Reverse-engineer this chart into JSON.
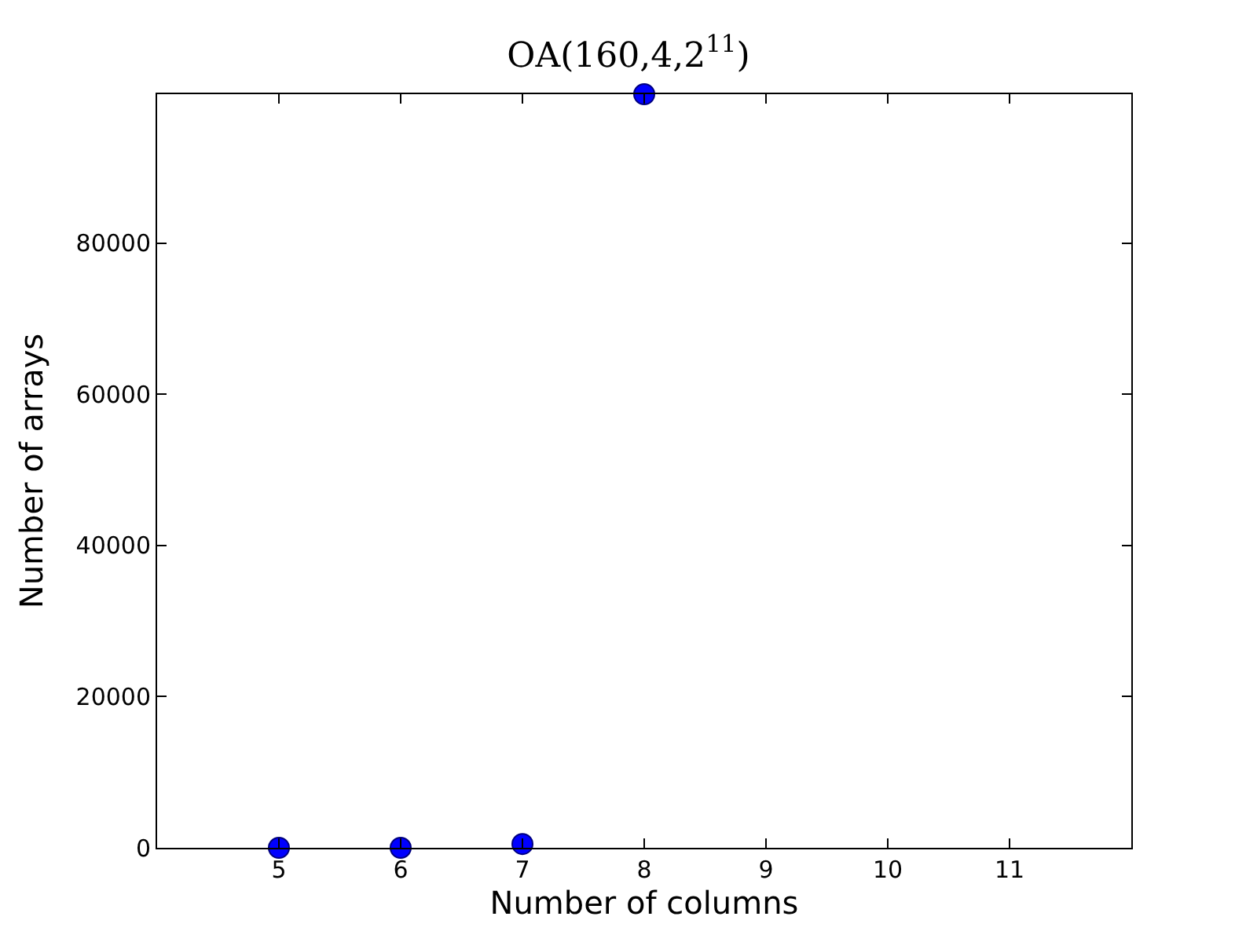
{
  "chart_data": {
    "type": "scatter",
    "title": "OA(160,4,2$^{11}$)",
    "xlabel": "Number of columns",
    "ylabel": "Number of arrays",
    "x": [
      5,
      6,
      7,
      8
    ],
    "series": [
      {
        "color": "#0000ff",
        "values": [
          0,
          0,
          500,
          99700
        ]
      }
    ],
    "xlim": [
      4,
      12
    ],
    "xticks": [
      5,
      6,
      7,
      8,
      9,
      10,
      11
    ],
    "ylim": [
      0,
      99700
    ],
    "yticks": [
      0,
      20000,
      40000,
      60000,
      80000
    ],
    "marker": "circle"
  }
}
